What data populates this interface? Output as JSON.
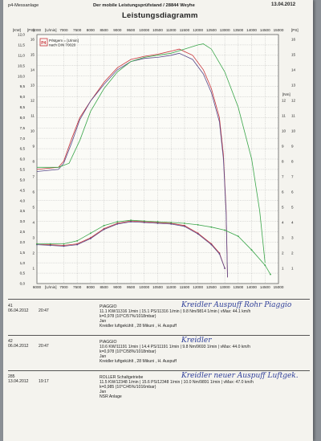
{
  "header": {
    "left": "p4-Messanlage",
    "center": "Der mobile Leistungsprüfstand  /  28844 Weyhe",
    "date": "13.04.2012",
    "title": "Leistungsdiagramm"
  },
  "chart_data": {
    "type": "line",
    "x_unit": "U/min",
    "x_ticks": [
      6000,
      7000,
      7500,
      8000,
      8500,
      9000,
      9500,
      10000,
      10500,
      11000,
      11500,
      12000,
      12500,
      13000,
      13500,
      14000,
      14500,
      15000
    ],
    "x_ticks_bottom": [
      6000,
      7000,
      7500,
      8000,
      8500,
      9000,
      9500,
      10000,
      10500,
      11000,
      11500,
      12000,
      12500,
      13000,
      13500,
      14000,
      14500,
      15000
    ],
    "xlim": [
      6000,
      15000
    ],
    "y_left": {
      "label": "[KW]",
      "ticks": [
        0,
        0.5,
        1,
        1.5,
        2,
        2.5,
        3,
        3.5,
        4,
        4.5,
        5,
        5.5,
        6,
        6.5,
        7,
        7.5,
        8,
        8.5,
        9,
        9.5,
        10,
        10.5,
        11,
        11.5,
        12
      ],
      "lim": [
        0,
        12
      ]
    },
    "y_ps": {
      "label": "[PS]",
      "ticks": [
        1,
        2,
        3,
        4,
        5,
        6,
        7,
        8,
        9,
        10,
        11,
        12,
        13,
        14,
        15,
        16
      ],
      "lim": [
        0,
        16.32
      ]
    },
    "y_right_ps": {
      "label": "[PS]",
      "ticks": [
        1,
        2,
        3,
        4,
        5,
        6,
        7,
        8,
        9,
        10,
        11,
        12,
        13,
        14,
        15,
        16
      ],
      "lim": [
        0,
        16.32
      ]
    },
    "y_nm": {
      "label": "[Nm]",
      "ticks": [
        1,
        2,
        3,
        4,
        5,
        6,
        7,
        8,
        9,
        10,
        11,
        12
      ],
      "lim": [
        0,
        16.32
      ]
    },
    "legend": [
      "P/Mgem = [U/min]",
      "nach DIN 70020"
    ],
    "series": [
      {
        "color": "#c8343a",
        "power_kw": [
          [
            6000,
            5.5
          ],
          [
            6800,
            5.6
          ],
          [
            7000,
            5.9
          ],
          [
            7300,
            7.0
          ],
          [
            7600,
            8.0
          ],
          [
            8000,
            8.8
          ],
          [
            8500,
            9.7
          ],
          [
            9000,
            10.4
          ],
          [
            9500,
            10.8
          ],
          [
            10000,
            10.95
          ],
          [
            10500,
            11.05
          ],
          [
            11000,
            11.2
          ],
          [
            11300,
            11.3
          ],
          [
            11800,
            11.0
          ],
          [
            12200,
            10.3
          ],
          [
            12500,
            9.4
          ],
          [
            12800,
            8.0
          ],
          [
            12950,
            6.2
          ],
          [
            13050,
            3.5
          ],
          [
            13100,
            0.3
          ]
        ],
        "torque_nm": [
          [
            6000,
            2.6
          ],
          [
            6500,
            2.55
          ],
          [
            7000,
            2.5
          ],
          [
            7500,
            2.6
          ],
          [
            8000,
            3.0
          ],
          [
            8500,
            3.6
          ],
          [
            9000,
            3.95
          ],
          [
            9500,
            4.1
          ],
          [
            10000,
            4.05
          ],
          [
            10500,
            4.0
          ],
          [
            11000,
            3.95
          ],
          [
            11500,
            3.8
          ],
          [
            12000,
            3.3
          ],
          [
            12500,
            2.6
          ],
          [
            12800,
            2.0
          ],
          [
            13000,
            1.0
          ]
        ]
      },
      {
        "color": "#5a4a8a",
        "power_kw": [
          [
            6000,
            5.4
          ],
          [
            6800,
            5.5
          ],
          [
            7000,
            5.8
          ],
          [
            7300,
            6.8
          ],
          [
            7600,
            7.9
          ],
          [
            8000,
            8.8
          ],
          [
            8500,
            9.6
          ],
          [
            9000,
            10.3
          ],
          [
            9500,
            10.7
          ],
          [
            10000,
            10.85
          ],
          [
            10500,
            10.9
          ],
          [
            11000,
            11.0
          ],
          [
            11300,
            11.1
          ],
          [
            11800,
            10.8
          ],
          [
            12200,
            10.1
          ],
          [
            12500,
            9.2
          ],
          [
            12800,
            7.8
          ],
          [
            12950,
            6.0
          ],
          [
            13050,
            3.4
          ],
          [
            13100,
            0.3
          ]
        ],
        "torque_nm": [
          [
            6000,
            2.55
          ],
          [
            6500,
            2.5
          ],
          [
            7000,
            2.45
          ],
          [
            7500,
            2.55
          ],
          [
            8000,
            2.95
          ],
          [
            8500,
            3.55
          ],
          [
            9000,
            3.9
          ],
          [
            9500,
            4.05
          ],
          [
            10000,
            4.0
          ],
          [
            10500,
            3.95
          ],
          [
            11000,
            3.9
          ],
          [
            11500,
            3.75
          ],
          [
            12000,
            3.25
          ],
          [
            12500,
            2.55
          ],
          [
            12800,
            1.95
          ],
          [
            13000,
            1.0
          ]
        ]
      },
      {
        "color": "#3aa64a",
        "power_kw": [
          [
            6000,
            5.6
          ],
          [
            6800,
            5.6
          ],
          [
            7200,
            5.8
          ],
          [
            7600,
            6.9
          ],
          [
            8000,
            8.3
          ],
          [
            8500,
            9.4
          ],
          [
            9000,
            10.2
          ],
          [
            9500,
            10.7
          ],
          [
            10000,
            10.9
          ],
          [
            10500,
            11.0
          ],
          [
            11000,
            11.1
          ],
          [
            11500,
            11.3
          ],
          [
            12000,
            11.5
          ],
          [
            12200,
            11.55
          ],
          [
            12500,
            11.3
          ],
          [
            13000,
            10.2
          ],
          [
            13500,
            8.5
          ],
          [
            14000,
            6.0
          ],
          [
            14300,
            3.5
          ],
          [
            14500,
            1.0
          ]
        ],
        "torque_nm": [
          [
            6000,
            2.6
          ],
          [
            6500,
            2.6
          ],
          [
            7000,
            2.6
          ],
          [
            7500,
            2.8
          ],
          [
            8000,
            3.3
          ],
          [
            8500,
            3.8
          ],
          [
            9000,
            4.05
          ],
          [
            9500,
            4.15
          ],
          [
            10000,
            4.1
          ],
          [
            10500,
            4.05
          ],
          [
            11000,
            4.0
          ],
          [
            11500,
            3.95
          ],
          [
            12000,
            3.85
          ],
          [
            12500,
            3.7
          ],
          [
            13000,
            3.5
          ],
          [
            13500,
            3.1
          ],
          [
            14000,
            2.2
          ],
          [
            14500,
            1.2
          ],
          [
            14700,
            0.6
          ]
        ]
      }
    ]
  },
  "records": [
    {
      "id": "41",
      "date": "06.04.2012",
      "time": "20:47",
      "name": "PIAGGIO",
      "line1": "11.1 KW/11316 1/min  |  15.1 PS/11316 1/min  |  9.8 Nm/9814 1/min  |  vMax: 44.1 km/h",
      "line2": "k=0,978 (10°C/57%/1018mbar)",
      "line3": "Jan",
      "line4": "Kreidler luftgekühlt , 28 Mikuni , H. Auspuff",
      "note": "Kreidler Auspuff Rohr Piaggio"
    },
    {
      "id": "42",
      "date": "06.04.2012",
      "time": "20:47",
      "name": "PIAGGIO",
      "line1": "10.6 KW/11191 1/min  |  14.4 PS/11191 1/min  |  9.8 Nm/9693 1/min  |  vMax: 44.0 km/h",
      "line2": "k=0,978 (10°C/58%/1018mbar)",
      "line3": "Jan",
      "line4": "Kreidler luftgekühlt , 28 Mikuni , H. Auspuff",
      "note": "Kreidler"
    },
    {
      "id": "285",
      "date": "13.04.2012",
      "time": "19:17",
      "name": "ROLLER Schaltgetriebe",
      "line1": "11.5 KW/12348 1/min  |  15.6 PS/12348 1/min  |  10.0 Nm/9891 1/min  |  vMax: 47.0 km/h",
      "line2": "k=0,985 (10°C/45%/1016mbar)",
      "line3": "Jan",
      "line4": "NSR Anlage",
      "note": "Kreidler neuer Auspuff Luftgek."
    }
  ]
}
